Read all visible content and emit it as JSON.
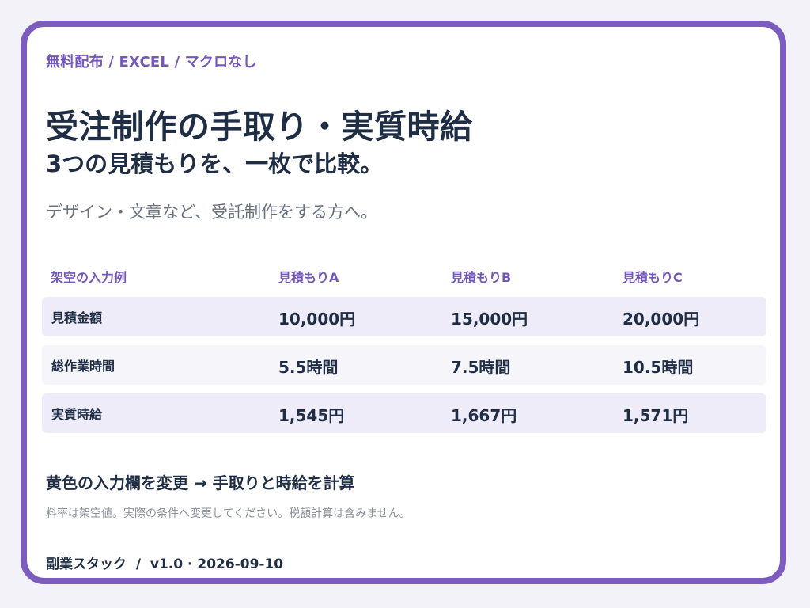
{
  "header": {
    "tagline": "無料配布 / EXCEL / マクロなし",
    "title": "受注制作の手取り・実質時給",
    "subtitle": "3つの見積もりを、一枚で比較。",
    "lead": "デザイン・文章など、受託制作をする方へ。"
  },
  "table": {
    "columns": [
      "架空の入力例",
      "見積もりA",
      "見積もりB",
      "見積もりC"
    ],
    "rows": [
      {
        "label": "見積金額",
        "values": [
          "10,000円",
          "15,000円",
          "20,000円"
        ]
      },
      {
        "label": "総作業時間",
        "values": [
          "5.5時間",
          "7.5時間",
          "10.5時間"
        ]
      },
      {
        "label": "実質時給",
        "values": [
          "1,545円",
          "1,667円",
          "1,571円"
        ]
      }
    ]
  },
  "instruction": "黄色の入力欄を変更 → 手取りと時給を計算",
  "note": "料率は架空値。実際の条件へ変更してください。税額計算は含みません。",
  "footer": "副業スタック  /  v1.0 · 2026-09-10",
  "colors": {
    "accent": "#7c5cbf",
    "text": "#1f2d45",
    "row_tint": "#eeecf8"
  }
}
